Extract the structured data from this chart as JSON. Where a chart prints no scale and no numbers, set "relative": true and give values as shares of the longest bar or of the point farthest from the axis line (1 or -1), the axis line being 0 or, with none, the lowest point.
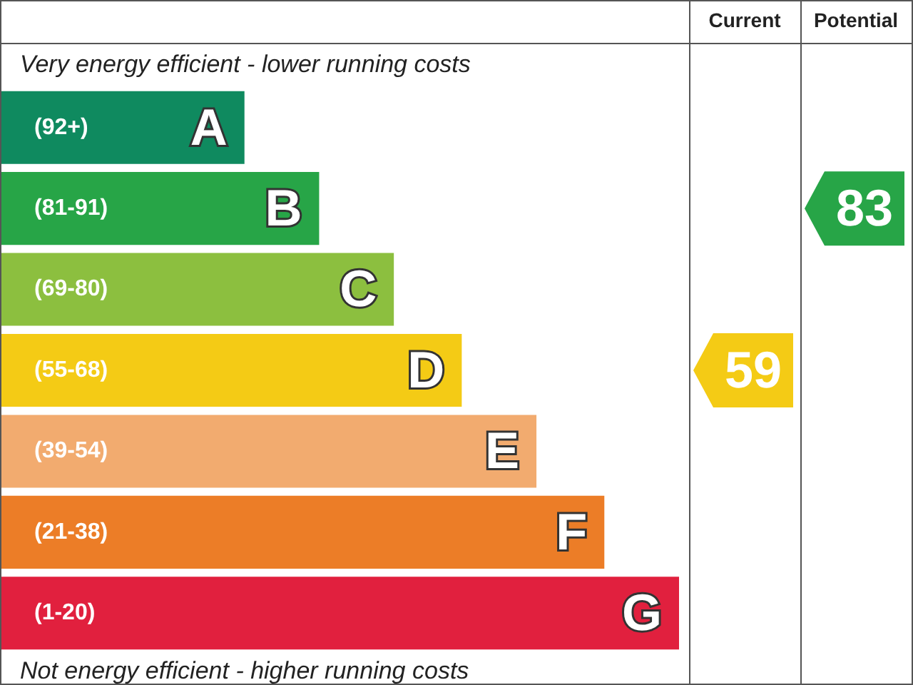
{
  "chart_data": {
    "type": "bar",
    "orientation": "horizontal",
    "relative": true,
    "categories": [
      "A",
      "B",
      "C",
      "D",
      "E",
      "F",
      "G"
    ],
    "values": [
      0.36,
      0.47,
      0.58,
      0.68,
      0.79,
      0.89,
      1
    ],
    "colors": [
      "#0f8a5f",
      "#27a547",
      "#8cbf3f",
      "#f4cb15",
      "#f2ab6f",
      "#ec7d27",
      "#e1203e"
    ],
    "annotations": [
      "Very energy efficient - lower running costs",
      "Not energy efficient - higher running costs",
      "Current",
      "Potential",
      "59",
      "83",
      "(92+)",
      "(81-91)",
      "(69-80)",
      "(55-68)",
      "(39-54)",
      "(21-38)",
      "(1-20)"
    ]
  }
}
